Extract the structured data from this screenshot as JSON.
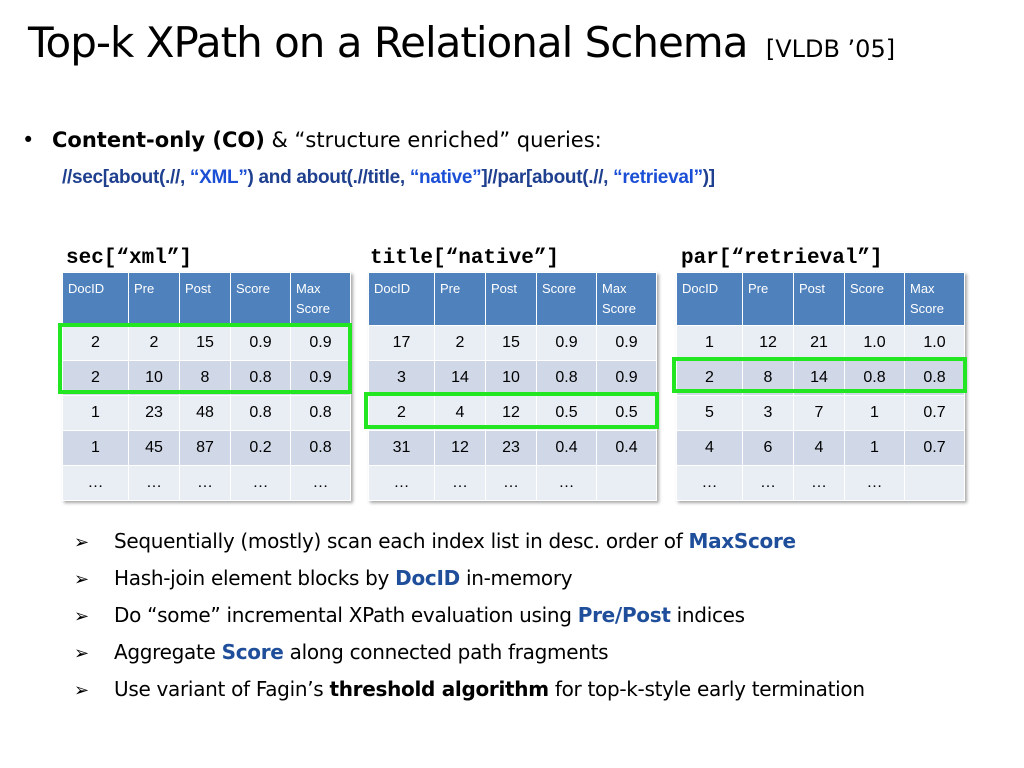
{
  "slide": {
    "title": "Top-k XPath on a Relational Schema",
    "citation": "[VLDB ’05]"
  },
  "bullet": {
    "marker": "•",
    "bold": "Content-only (CO)",
    "rest": " & “structure enriched” queries:"
  },
  "query": {
    "p1": "//sec[about(.//, ",
    "k1": "“XML”",
    "p2": ") and about(.//title, ",
    "k2": "“native”",
    "p3": "]//par[about(.//, ",
    "k3": "“retrieval”",
    "p4": ")]"
  },
  "tables": [
    {
      "label": "sec[“xml”]",
      "headers": [
        "DocID",
        "Pre",
        "Post",
        "Score",
        "Max Score"
      ],
      "rows": [
        [
          "2",
          "2",
          "15",
          "0.9",
          "0.9"
        ],
        [
          "2",
          "10",
          "8",
          "0.8",
          "0.9"
        ],
        [
          "1",
          "23",
          "48",
          "0.8",
          "0.8"
        ],
        [
          "1",
          "45",
          "87",
          "0.2",
          "0.8"
        ],
        [
          "…",
          "…",
          "…",
          "…",
          "…"
        ]
      ]
    },
    {
      "label": "title[“native”]",
      "headers": [
        "DocID",
        "Pre",
        "Post",
        "Score",
        "Max Score"
      ],
      "rows": [
        [
          "17",
          "2",
          "15",
          "0.9",
          "0.9"
        ],
        [
          "3",
          "14",
          "10",
          "0.8",
          "0.9"
        ],
        [
          "2",
          "4",
          "12",
          "0.5",
          "0.5"
        ],
        [
          "31",
          "12",
          "23",
          "0.4",
          "0.4"
        ],
        [
          "…",
          "…",
          "…",
          "…",
          ""
        ]
      ]
    },
    {
      "label": "par[“retrieval”]",
      "headers": [
        "DocID",
        "Pre",
        "Post",
        "Score",
        "Max Score"
      ],
      "rows": [
        [
          "1",
          "12",
          "21",
          "1.0",
          "1.0"
        ],
        [
          "2",
          "8",
          "14",
          "0.8",
          "0.8"
        ],
        [
          "5",
          "3",
          "7",
          "1",
          "0.7"
        ],
        [
          "4",
          "6",
          "4",
          "1",
          "0.7"
        ],
        [
          "…",
          "…",
          "…",
          "…",
          ""
        ]
      ]
    }
  ],
  "points": [
    {
      "a": "Sequentially (mostly) scan each index list in desc. order of ",
      "h": "MaxScore",
      "b": ""
    },
    {
      "a": "Hash-join element blocks by ",
      "h": "DocID",
      "b": " in-memory"
    },
    {
      "a": "Do “some” incremental XPath evaluation using ",
      "h": "Pre/Post",
      "b": " indices"
    },
    {
      "a": "Aggregate ",
      "h": "Score",
      "b": " along connected path fragments"
    },
    {
      "a": "Use variant of Fagin’s ",
      "k": "threshold algorithm",
      "b": " for top-k-style early termination"
    }
  ],
  "point_marker": "➢",
  "colors": {
    "header": "#4f81bd",
    "highlight": "#22e622",
    "keyword": "#1f4e9a"
  }
}
